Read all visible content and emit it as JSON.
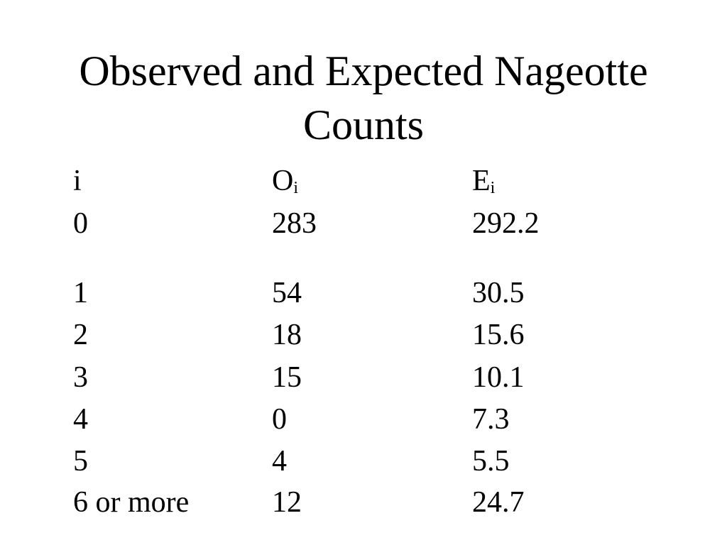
{
  "title": "Observed and Expected Nageotte Counts",
  "table": {
    "header": [
      {
        "main": "i"
      },
      {
        "main": "O",
        "sub": "i"
      },
      {
        "main": "E",
        "sub": "i"
      }
    ],
    "rows": [
      [
        "0",
        "283",
        "292.2"
      ],
      [
        "1",
        "54",
        "30.5"
      ],
      [
        "2",
        "18",
        "15.6"
      ],
      [
        "3",
        "15",
        "10.1"
      ],
      [
        "4",
        "0",
        "7.3"
      ],
      [
        "5",
        "4",
        "5.5"
      ],
      [
        "6 or more",
        "12",
        "24.7"
      ]
    ]
  }
}
